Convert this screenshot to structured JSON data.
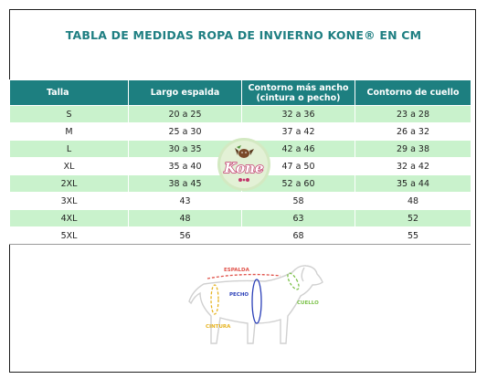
{
  "title": "TABLA DE MEDIDAS ROPA DE INVIERNO KONE® EN CM",
  "headers": [
    "Talla",
    "Largo espalda",
    "Contorno más ancho (cintura o pecho)",
    "Contorno de cuello"
  ],
  "header_contorno_line1": "Contorno más ancho",
  "header_contorno_line2": "(cintura o pecho)",
  "rows": [
    [
      "S",
      "20 a 25",
      "32 a 36",
      "23 a 28"
    ],
    [
      "M",
      "25 a 30",
      "37 a 42",
      "26 a 32"
    ],
    [
      "L",
      "30 a 35",
      "42 a 46",
      "29 a 38"
    ],
    [
      "XL",
      "35 a 40",
      "47 a 50",
      "32 a 42"
    ],
    [
      "2XL",
      "38 a 45",
      "52 a 60",
      "35 a 44"
    ],
    [
      "3XL",
      "43",
      "58",
      "48"
    ],
    [
      "4XL",
      "48",
      "63",
      "52"
    ],
    [
      "5XL",
      "56",
      "68",
      "55"
    ]
  ],
  "logo_text": "Kone",
  "diagram_labels": {
    "espalda": "ESPALDA",
    "pecho": "PECHO",
    "cuello": "CUELLO",
    "cintura": "CINTURA"
  },
  "colors": {
    "header_bg": "#1d7f80",
    "title": "#1f7f82",
    "row_alt": "#c9f2cc",
    "espalda": "#e0524a",
    "pecho": "#2a3fb8",
    "cuello": "#7cc24a",
    "cintura": "#e6b320"
  }
}
